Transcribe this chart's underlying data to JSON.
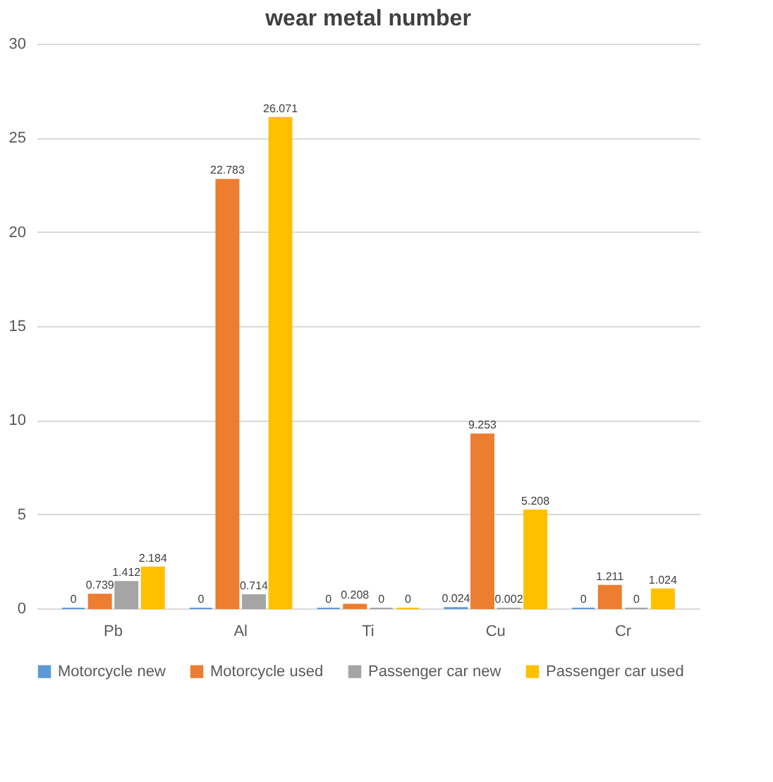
{
  "chart_data": {
    "type": "bar",
    "title": "wear metal number",
    "categories": [
      "Pb",
      "Al",
      "Ti",
      "Cu",
      "Cr"
    ],
    "series": [
      {
        "name": "Motorcycle new",
        "color": "#5b9bd5",
        "values": [
          0,
          0,
          0,
          0.024,
          0
        ]
      },
      {
        "name": "Motorcycle used",
        "color": "#ed7d31",
        "values": [
          0.739,
          22.783,
          0.208,
          9.253,
          1.211
        ]
      },
      {
        "name": "Passenger car new",
        "color": "#a5a5a5",
        "values": [
          1.412,
          0.714,
          0,
          0.002,
          0
        ]
      },
      {
        "name": "Passenger car used",
        "color": "#ffc000",
        "values": [
          2.184,
          26.071,
          0,
          5.208,
          1.024
        ]
      }
    ],
    "ylim": [
      0,
      30
    ],
    "yticks": [
      0,
      5,
      10,
      15,
      20,
      25,
      30
    ],
    "grid": "y",
    "legend": "bottom",
    "data_labels": true
  }
}
